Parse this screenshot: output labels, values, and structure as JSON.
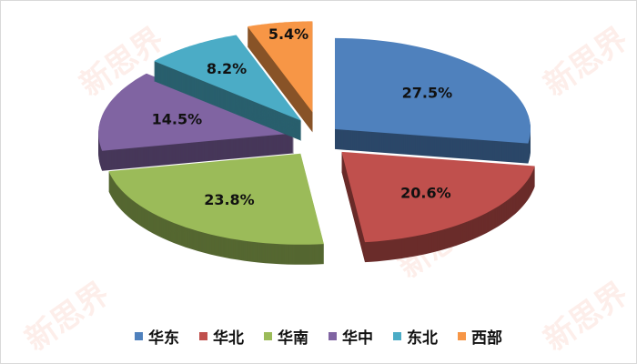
{
  "watermark": "新思界 newsijie.com",
  "chart_data": {
    "type": "pie",
    "style": "3d-exploded",
    "categories": [
      "华东",
      "华北",
      "华南",
      "华中",
      "东北",
      "西部"
    ],
    "values": [
      27.5,
      20.6,
      23.8,
      14.5,
      8.2,
      5.4
    ],
    "labels": [
      "27.5%",
      "20.6%",
      "23.8%",
      "14.5%",
      "8.2%",
      "5.4%"
    ],
    "colors": [
      "#4F81BD",
      "#C0504D",
      "#9BBB59",
      "#8064A2",
      "#4BACC6",
      "#F79646"
    ],
    "legend_position": "bottom",
    "title": ""
  }
}
